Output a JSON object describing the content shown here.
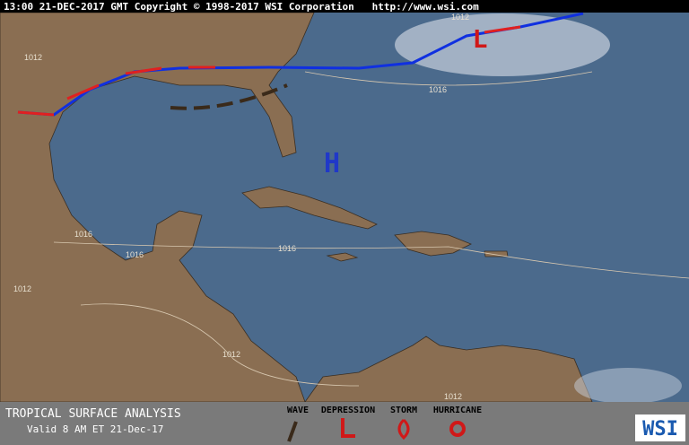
{
  "header": "13:00 21-DEC-2017 GMT Copyright © 1998-2017 WSI Corporation   http://www.wsi.com",
  "pressure_centers": [
    "H",
    "L"
  ],
  "isobar_labels": [
    "1012",
    "1012",
    "1016",
    "1016",
    "1016",
    "1016",
    "1012",
    "1012",
    "1012"
  ],
  "footer": {
    "title": "TROPICAL SURFACE ANALYSIS",
    "valid": "Valid 8 AM ET 21-Dec-17",
    "legend": [
      "WAVE",
      "DEPRESSION",
      "STORM",
      "HURRICANE"
    ],
    "logo": "WSI"
  }
}
